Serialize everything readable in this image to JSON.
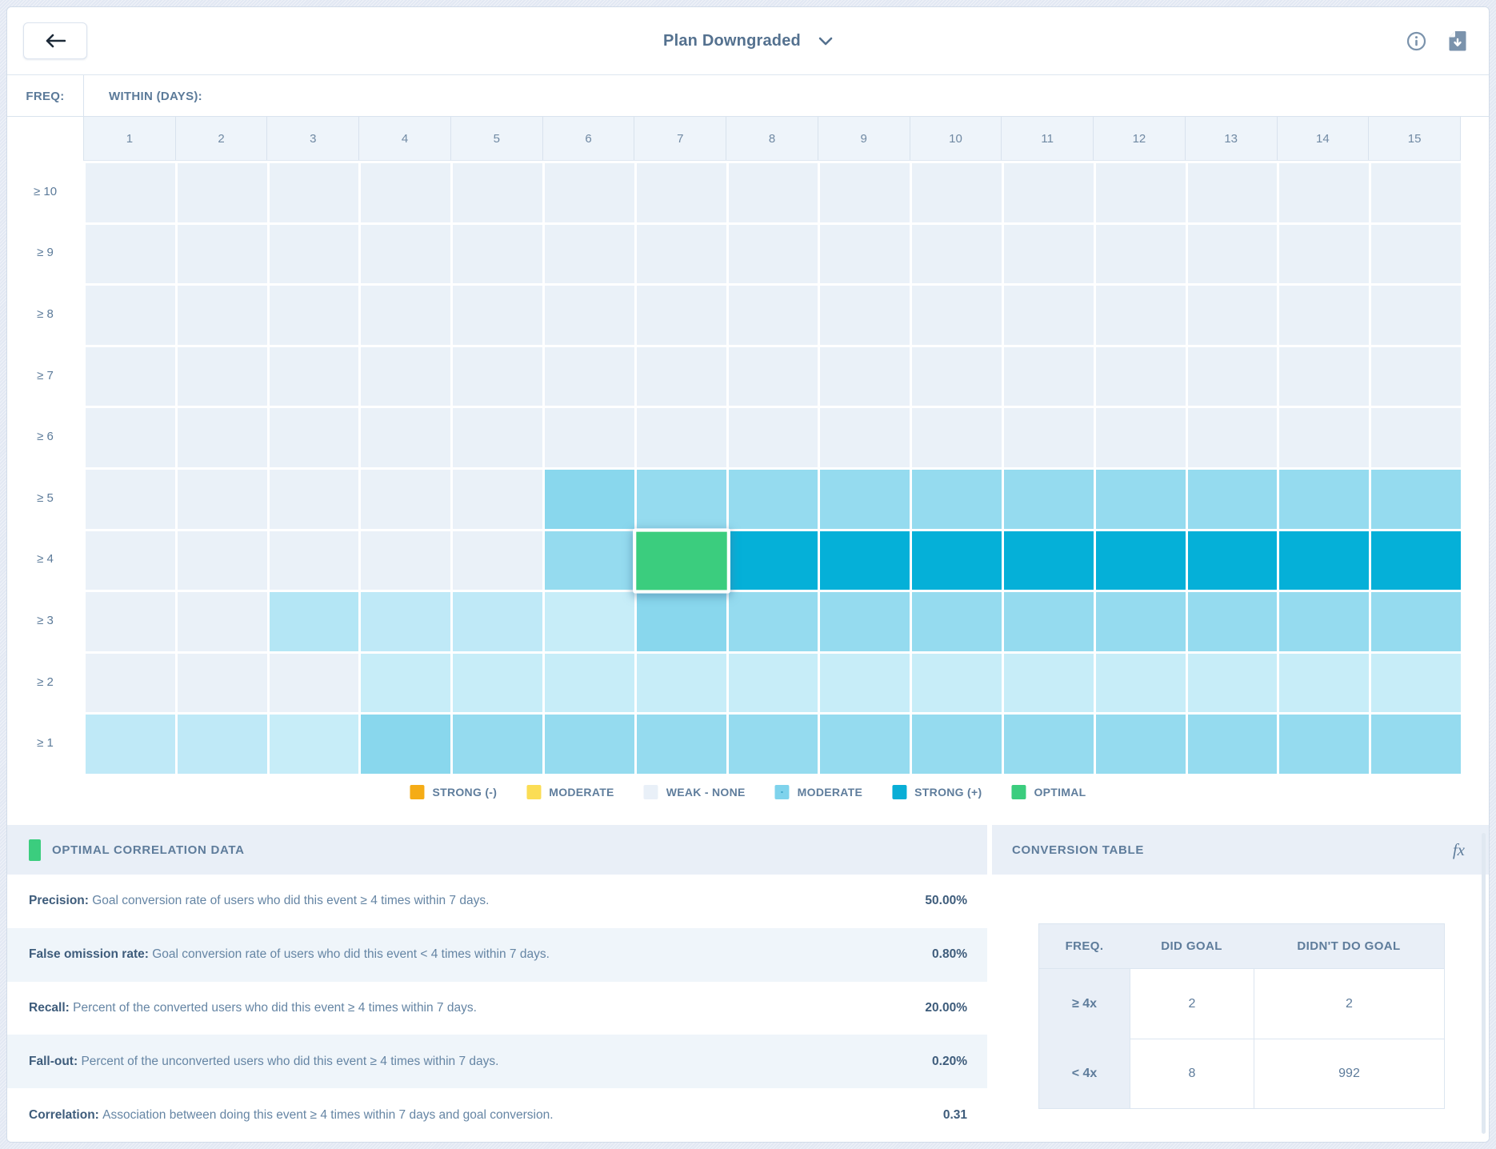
{
  "topbar": {
    "title": "Plan Downgraded"
  },
  "axis": {
    "freq_label": "FREQ:",
    "within_label": "WITHIN (DAYS):"
  },
  "chart_data": {
    "type": "heatmap",
    "title": "Event frequency vs. days correlation heatmap",
    "xlabel": "WITHIN (DAYS):",
    "ylabel": "FREQ:",
    "columns": [
      "1",
      "2",
      "3",
      "4",
      "5",
      "6",
      "7",
      "8",
      "9",
      "10",
      "11",
      "12",
      "13",
      "14",
      "15"
    ],
    "row_labels": [
      "≥ 10",
      "≥ 9",
      "≥ 8",
      "≥ 7",
      "≥ 6",
      "≥ 5",
      "≥ 4",
      "≥ 3",
      "≥ 2",
      "≥ 1"
    ],
    "legend_position": "bottom",
    "palette": {
      "w": "#EAF1F8",
      "p1": "#C7EDF8",
      "p2": "#BFE9F7",
      "p3": "#B4E6F5",
      "m1": "#95DBEF",
      "m2": "#89D7ED",
      "s": "#05B0D8",
      "g": "#3BCD7E"
    },
    "levels": {
      "w": "weak-none",
      "p1": "weak-moderate",
      "p2": "weak-moderate",
      "p3": "weak-moderate",
      "m1": "moderate",
      "m2": "moderate",
      "s": "strong-positive",
      "g": "optimal"
    },
    "cells": [
      [
        "w",
        "w",
        "w",
        "w",
        "w",
        "w",
        "w",
        "w",
        "w",
        "w",
        "w",
        "w",
        "w",
        "w",
        "w"
      ],
      [
        "w",
        "w",
        "w",
        "w",
        "w",
        "w",
        "w",
        "w",
        "w",
        "w",
        "w",
        "w",
        "w",
        "w",
        "w"
      ],
      [
        "w",
        "w",
        "w",
        "w",
        "w",
        "w",
        "w",
        "w",
        "w",
        "w",
        "w",
        "w",
        "w",
        "w",
        "w"
      ],
      [
        "w",
        "w",
        "w",
        "w",
        "w",
        "w",
        "w",
        "w",
        "w",
        "w",
        "w",
        "w",
        "w",
        "w",
        "w"
      ],
      [
        "w",
        "w",
        "w",
        "w",
        "w",
        "w",
        "w",
        "w",
        "w",
        "w",
        "w",
        "w",
        "w",
        "w",
        "w"
      ],
      [
        "w",
        "w",
        "w",
        "w",
        "w",
        "m2",
        "m1",
        "m1",
        "m1",
        "m1",
        "m1",
        "m1",
        "m1",
        "m1",
        "m1"
      ],
      [
        "w",
        "w",
        "w",
        "w",
        "w",
        "m1",
        "g",
        "s",
        "s",
        "s",
        "s",
        "s",
        "s",
        "s",
        "s"
      ],
      [
        "w",
        "w",
        "p3",
        "p2",
        "p2",
        "p1",
        "m2",
        "m1",
        "m1",
        "m1",
        "m1",
        "m1",
        "m1",
        "m1",
        "m1"
      ],
      [
        "w",
        "w",
        "w",
        "p1",
        "p1",
        "p1",
        "p1",
        "p1",
        "p1",
        "p1",
        "p1",
        "p1",
        "p1",
        "p1",
        "p1"
      ],
      [
        "p2",
        "p2",
        "p1",
        "m2",
        "m1",
        "m1",
        "m1",
        "m1",
        "m1",
        "m1",
        "m1",
        "m1",
        "m1",
        "m1",
        "m1"
      ]
    ],
    "selected_cell": {
      "row": "≥ 4",
      "column": "7"
    }
  },
  "legend": {
    "items": [
      {
        "label": "STRONG (-)",
        "color": "#F5AC16",
        "textured": false
      },
      {
        "label": "MODERATE",
        "color": "#FBDD55",
        "textured": false
      },
      {
        "label": "WEAK - NONE",
        "color": "#E9F0F8",
        "textured": false
      },
      {
        "label": "MODERATE",
        "color": "#7FD3EC",
        "textured": true
      },
      {
        "label": "STRONG (+)",
        "color": "#09AED6",
        "textured": false
      },
      {
        "label": "OPTIMAL",
        "color": "#3BCD7E",
        "textured": false
      }
    ]
  },
  "optimal_panel": {
    "title": "OPTIMAL CORRELATION DATA",
    "swatch_color": "#3BCD7E",
    "metrics": [
      {
        "name": "Precision:",
        "desc": "Goal conversion rate of users who did this event ≥ 4 times within 7 days.",
        "value": "50.00%"
      },
      {
        "name": "False omission rate:",
        "desc": "Goal conversion rate of users who did this event < 4 times within 7 days.",
        "value": "0.80%"
      },
      {
        "name": "Recall:",
        "desc": "Percent of the converted users who did this event ≥ 4 times within 7 days.",
        "value": "20.00%"
      },
      {
        "name": "Fall-out:",
        "desc": "Percent of the unconverted users who did this event ≥ 4 times within 7 days.",
        "value": "0.20%"
      },
      {
        "name": "Correlation:",
        "desc": "Association between doing this event ≥ 4 times within 7 days and goal conversion.",
        "value": "0.31"
      }
    ]
  },
  "conversion_panel": {
    "title": "CONVERSION TABLE",
    "fx_label": "fx",
    "headers": [
      "FREQ.",
      "DID GOAL",
      "DIDN'T DO GOAL"
    ],
    "rows": [
      {
        "freq": "≥ 4x",
        "did_goal": "2",
        "didnt_do_goal": "2"
      },
      {
        "freq": "< 4x",
        "did_goal": "8",
        "didnt_do_goal": "992"
      }
    ]
  }
}
